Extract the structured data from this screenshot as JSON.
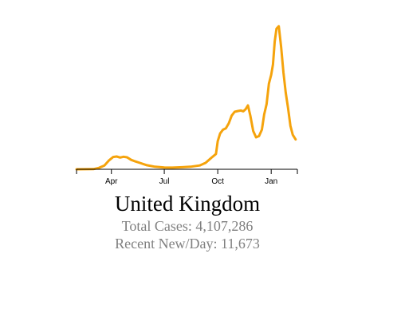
{
  "chart_data": {
    "type": "line",
    "title": "United Kingdom",
    "xlabel": "",
    "ylabel": "",
    "x_ticks": [
      "Apr",
      "Jul",
      "Oct",
      "Jan"
    ],
    "tick_dates": [
      "2020-04-01",
      "2020-07-01",
      "2020-10-01",
      "2021-01-01"
    ],
    "x_range": [
      "2020-02-01",
      "2021-02-15"
    ],
    "y_range": [
      0,
      60000
    ],
    "y_axis_shown": false,
    "grid": false,
    "line_color": "#F5A30C",
    "series": [
      {
        "x": [
          "2020-02-01",
          "2020-03-01",
          "2020-03-10",
          "2020-03-20",
          "2020-03-28",
          "2020-04-04",
          "2020-04-10",
          "2020-04-16",
          "2020-04-22",
          "2020-04-28",
          "2020-05-05",
          "2020-05-12",
          "2020-05-20",
          "2020-06-01",
          "2020-06-15",
          "2020-07-01",
          "2020-07-15",
          "2020-08-01",
          "2020-08-15",
          "2020-08-31",
          "2020-09-10",
          "2020-09-20",
          "2020-09-28",
          "2020-10-01",
          "2020-10-05",
          "2020-10-10",
          "2020-10-15",
          "2020-10-20",
          "2020-10-25",
          "2020-10-30",
          "2020-11-05",
          "2020-11-10",
          "2020-11-14",
          "2020-11-18",
          "2020-11-22",
          "2020-11-26",
          "2020-12-01",
          "2020-12-06",
          "2020-12-11",
          "2020-12-16",
          "2020-12-20",
          "2020-12-24",
          "2020-12-28",
          "2021-01-01",
          "2021-01-04",
          "2021-01-07",
          "2021-01-10",
          "2021-01-14",
          "2021-01-18",
          "2021-01-22",
          "2021-01-26",
          "2021-01-30",
          "2021-02-03",
          "2021-02-07",
          "2021-02-12"
        ],
        "values": [
          0,
          50,
          500,
          1500,
          3500,
          4800,
          5000,
          4600,
          4900,
          4700,
          3700,
          3100,
          2500,
          1600,
          1000,
          700,
          650,
          800,
          1000,
          1500,
          2500,
          4500,
          6000,
          11000,
          14000,
          15500,
          16000,
          18000,
          21000,
          22500,
          22800,
          23000,
          22700,
          23500,
          25000,
          21000,
          15000,
          12500,
          13000,
          15500,
          21500,
          25500,
          33500,
          37000,
          41000,
          50000,
          55000,
          56000,
          48000,
          38000,
          30000,
          24000,
          17000,
          13500,
          11673
        ]
      }
    ]
  },
  "caption": {
    "country": "United Kingdom",
    "total": "Total Cases: 4,107,286",
    "recent": "Recent New/Day: 11,673"
  }
}
